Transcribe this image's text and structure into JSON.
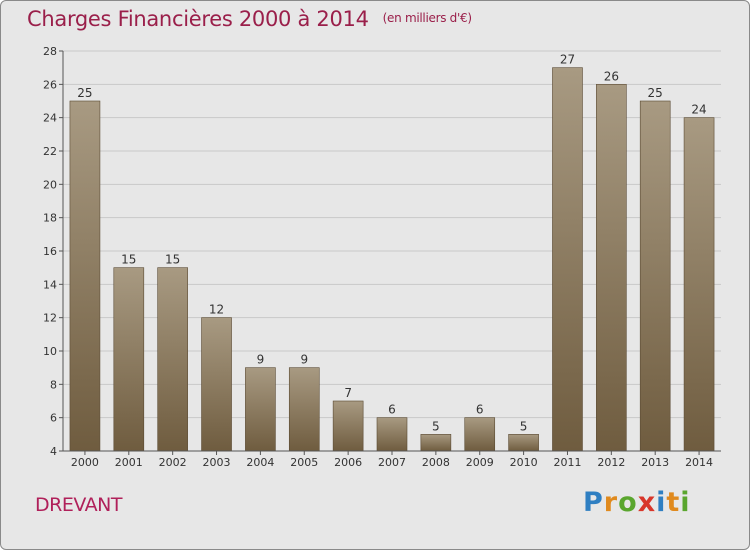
{
  "chart_data": {
    "type": "bar",
    "title": "Charges Financières 2000 à 2014",
    "unit_note": "(en milliers d'€)",
    "categories": [
      "2000",
      "2001",
      "2002",
      "2003",
      "2004",
      "2005",
      "2006",
      "2007",
      "2008",
      "2009",
      "2010",
      "2011",
      "2012",
      "2013",
      "2014"
    ],
    "values": [
      25,
      15,
      15,
      12,
      9,
      9,
      7,
      6,
      5,
      6,
      5,
      27,
      26,
      25,
      24
    ],
    "ylim": [
      4,
      28
    ],
    "yticks": [
      4,
      6,
      8,
      10,
      12,
      14,
      16,
      18,
      20,
      22,
      24,
      26,
      28
    ],
    "grid": true,
    "bar_color_top": "#a89a82",
    "bar_color_bottom": "#6f5c3f"
  },
  "place_name": "DREVANT",
  "logo": {
    "letters": [
      "P",
      "r",
      "o",
      "x",
      "i",
      "t",
      "i"
    ],
    "colors": [
      "#2f7fc2",
      "#e08a1e",
      "#5aa62e",
      "#d8362a",
      "#2f7fc2",
      "#e08a1e",
      "#5aa62e"
    ]
  }
}
